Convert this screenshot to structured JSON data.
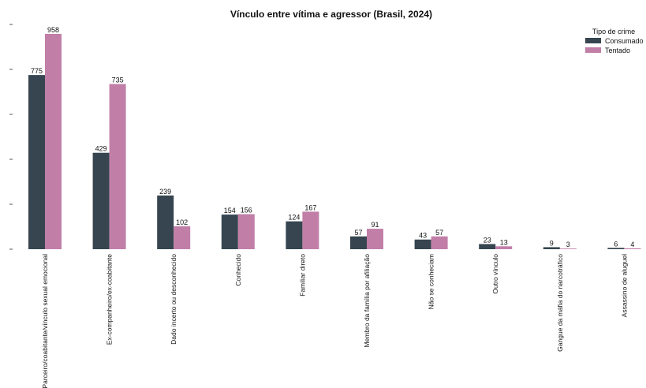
{
  "chart_data": {
    "type": "bar",
    "title": "Vínculo entre vítima e agressor (Brasil, 2024)",
    "xlabel": "",
    "ylabel": "",
    "ylim": [
      0,
      1000
    ],
    "grid": false,
    "legend": {
      "title": "Tipo de crime",
      "placement": "top-right"
    },
    "categories": [
      "Parceiro/coabitante/vínculo sexual emocional",
      "Ex-companheiro/ex-coabitante",
      "Dado incerto ou desconhecido",
      "Conhecido",
      "Familiar direto",
      "Membro da família por afiliação",
      "Não se conheciam",
      "Outro vínculo",
      "Gangue da máfia do narcotráfico",
      "Assassino de aluguel"
    ],
    "series": [
      {
        "name": "Consumado",
        "color": "#36454f",
        "values": [
          775,
          429,
          239,
          154,
          124,
          57,
          43,
          23,
          9,
          6
        ]
      },
      {
        "name": "Tentado",
        "color": "#c17fa8",
        "values": [
          958,
          735,
          102,
          156,
          167,
          91,
          57,
          13,
          3,
          4
        ]
      }
    ]
  }
}
